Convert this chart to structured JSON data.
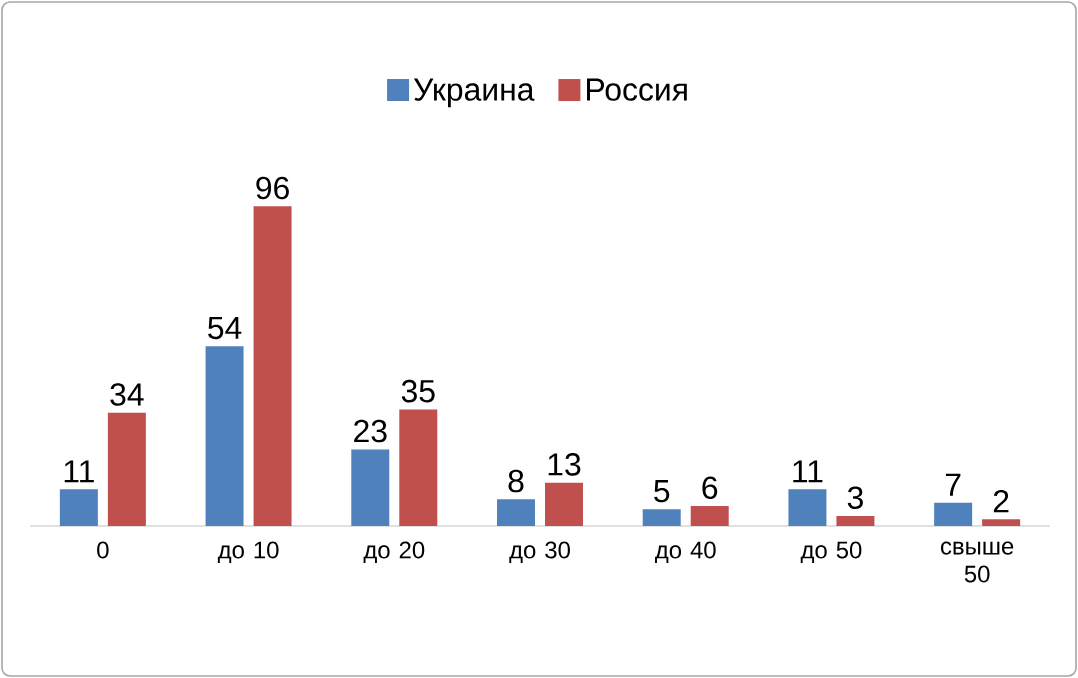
{
  "chart_data": {
    "type": "bar",
    "categories": [
      "0",
      "до 10",
      "до 20",
      "до 30",
      "до 40",
      "до 50",
      "свыше 50"
    ],
    "series": [
      {
        "name": "Украина",
        "color": "#4f81bd",
        "values": [
          11,
          54,
          23,
          8,
          5,
          11,
          7
        ]
      },
      {
        "name": "Россия",
        "color": "#c0504d",
        "values": [
          34,
          96,
          35,
          13,
          6,
          3,
          2
        ]
      }
    ],
    "data_labels": true,
    "legend": "top"
  }
}
